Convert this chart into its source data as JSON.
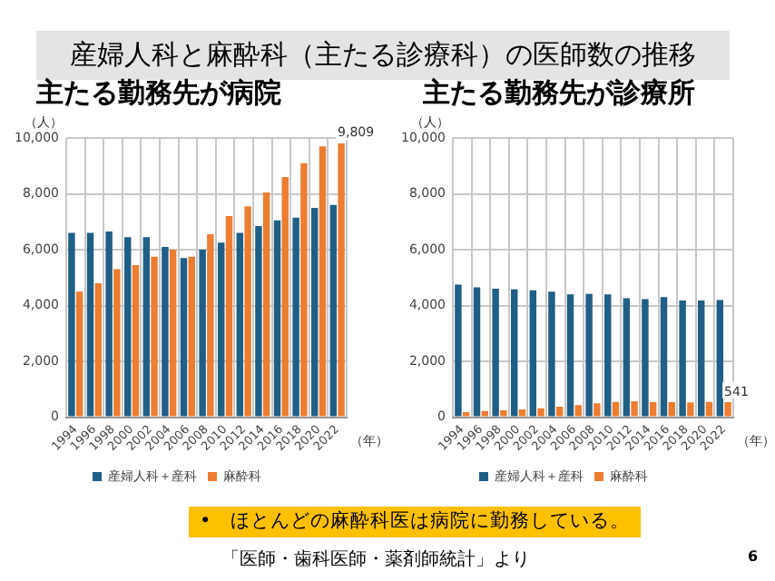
{
  "chart_data": [
    {
      "type": "bar",
      "title": "産婦人科と麻酔科（主たる診療科）の医師数の推移",
      "subtitle": "主たる勤務先が病院",
      "ylabel": "（人）",
      "xlabel": "（年）",
      "categories": [
        "1994",
        "1996",
        "1998",
        "2000",
        "2002",
        "2004",
        "2006",
        "2008",
        "2010",
        "2012",
        "2014",
        "2016",
        "2018",
        "2020",
        "2022"
      ],
      "series": [
        {
          "name": "産婦人科＋産科",
          "color": "#1f5f86",
          "values": [
            6600,
            6600,
            6650,
            6450,
            6450,
            6100,
            5700,
            6000,
            6250,
            6600,
            6850,
            7050,
            7150,
            7500,
            7600
          ]
        },
        {
          "name": "麻酔科",
          "color": "#ed7d31",
          "values": [
            4500,
            4800,
            5300,
            5450,
            5750,
            6000,
            5750,
            6550,
            7200,
            7550,
            8050,
            8600,
            9100,
            9700,
            9809
          ],
          "value_labels": [
            null,
            null,
            null,
            null,
            null,
            null,
            null,
            null,
            null,
            null,
            null,
            null,
            null,
            null,
            "9,809"
          ]
        }
      ],
      "ylim": [
        0,
        10000
      ],
      "yticks": [
        {
          "value": 0,
          "label": "0"
        },
        {
          "value": 2000,
          "label": "2,000"
        },
        {
          "value": 4000,
          "label": "4,000"
        },
        {
          "value": 6000,
          "label": "6,000"
        },
        {
          "value": 8000,
          "label": "8,000"
        },
        {
          "value": 10000,
          "label": "10,000"
        }
      ],
      "grid": true,
      "legend": "bottom",
      "annotations": [
        "•　ほとんどの麻酔科医は病院に勤務している。",
        "「医師・歯科医師・薬剤師統計」より",
        "6"
      ]
    },
    {
      "type": "bar",
      "subtitle": "主たる勤務先が診療所",
      "ylabel": "（人）",
      "xlabel": "（年）",
      "categories": [
        "1994",
        "1996",
        "1998",
        "2000",
        "2002",
        "2004",
        "2006",
        "2008",
        "2010",
        "2012",
        "2014",
        "2016",
        "2018",
        "2020",
        "2022"
      ],
      "series": [
        {
          "name": "産婦人科＋産科",
          "color": "#1f5f86",
          "values": [
            4750,
            4650,
            4600,
            4580,
            4550,
            4500,
            4400,
            4420,
            4400,
            4260,
            4230,
            4300,
            4180,
            4180,
            4200
          ]
        },
        {
          "name": "麻酔科",
          "color": "#ed7d31",
          "values": [
            180,
            220,
            250,
            280,
            320,
            380,
            430,
            500,
            550,
            570,
            540,
            540,
            530,
            550,
            541
          ],
          "value_labels": [
            null,
            null,
            null,
            null,
            null,
            null,
            null,
            null,
            null,
            null,
            null,
            null,
            null,
            null,
            "541"
          ]
        }
      ],
      "ylim": [
        0,
        10000
      ],
      "yticks": [
        {
          "value": 0,
          "label": "0"
        },
        {
          "value": 2000,
          "label": "2,000"
        },
        {
          "value": 4000,
          "label": "4,000"
        },
        {
          "value": 6000,
          "label": "6,000"
        },
        {
          "value": 8000,
          "label": "8,000"
        },
        {
          "value": 10000,
          "label": "10,000"
        }
      ],
      "grid": true,
      "legend": "bottom"
    }
  ]
}
